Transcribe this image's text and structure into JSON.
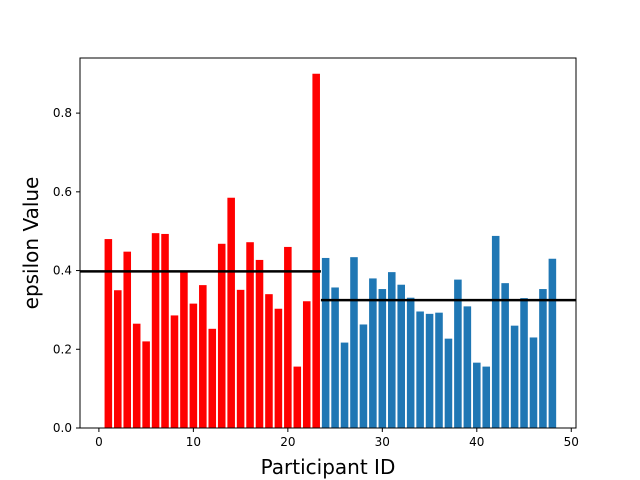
{
  "chart_data": {
    "type": "bar",
    "xlabel": "Participant ID",
    "ylabel": "epsilon Value",
    "xlim": [
      -2,
      50.5
    ],
    "ylim": [
      0,
      0.94
    ],
    "xticks": [
      0,
      10,
      20,
      30,
      40,
      50
    ],
    "yticks": [
      0.0,
      0.2,
      0.4,
      0.6,
      0.8
    ],
    "xtick_labels": [
      "0",
      "10",
      "20",
      "30",
      "40",
      "50"
    ],
    "ytick_labels": [
      "0.0",
      "0.2",
      "0.4",
      "0.6",
      "0.8"
    ],
    "grid": false,
    "series": [
      {
        "color": "#ff0000",
        "x": [
          1,
          2,
          3,
          4,
          5,
          6,
          7,
          8,
          9,
          10,
          11,
          12,
          13,
          14,
          15,
          16,
          17,
          18,
          19,
          20,
          21,
          22,
          23
        ],
        "values": [
          0.48,
          0.35,
          0.448,
          0.265,
          0.22,
          0.495,
          0.493,
          0.286,
          0.397,
          0.316,
          0.363,
          0.252,
          0.468,
          0.585,
          0.351,
          0.472,
          0.427,
          0.34,
          0.303,
          0.46,
          0.156,
          0.322,
          0.9
        ]
      },
      {
        "color": "#1f77b4",
        "x": [
          24,
          25,
          26,
          27,
          28,
          29,
          30,
          31,
          32,
          33,
          34,
          35,
          36,
          37,
          38,
          39,
          40,
          41,
          42,
          43,
          44,
          45,
          46,
          47,
          48
        ],
        "values": [
          0.432,
          0.357,
          0.217,
          0.434,
          0.263,
          0.38,
          0.353,
          0.396,
          0.364,
          0.331,
          0.296,
          0.29,
          0.293,
          0.227,
          0.377,
          0.309,
          0.166,
          0.156,
          0.488,
          0.368,
          0.26,
          0.33,
          0.23,
          0.353,
          0.43
        ]
      }
    ],
    "reference_lines": [
      {
        "color": "#000000",
        "value": 0.398,
        "x_from": -2,
        "x_to": 23.5
      },
      {
        "color": "#000000",
        "value": 0.325,
        "x_from": 23.5,
        "x_to": 50.5
      }
    ]
  }
}
